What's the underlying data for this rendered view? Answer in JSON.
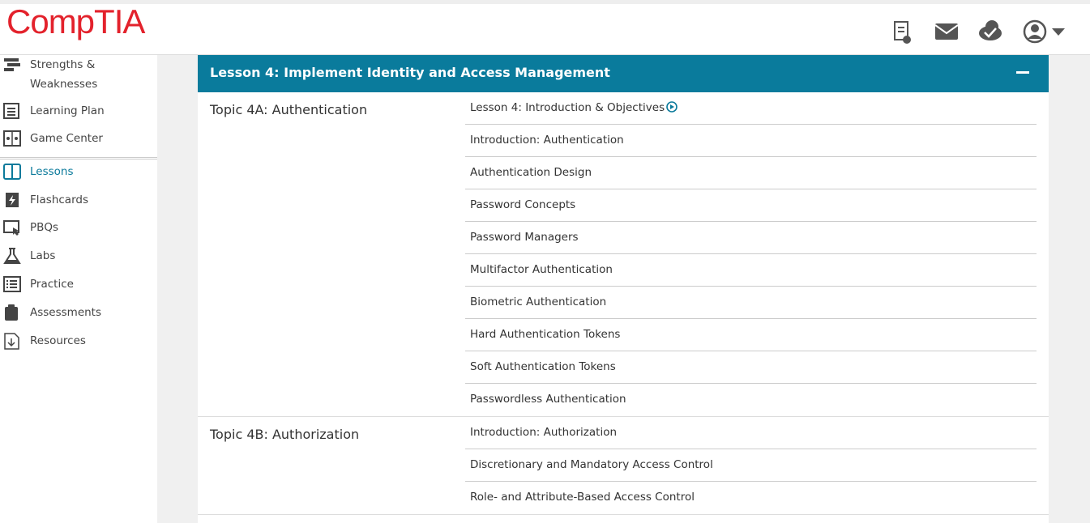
{
  "header": {
    "logo": "CompTIA"
  },
  "sidebar": {
    "items": [
      {
        "label": "Strengths & Weaknesses",
        "icon": "bars"
      },
      {
        "label": "Learning Plan",
        "icon": "doc"
      },
      {
        "label": "Game Center",
        "icon": "game"
      },
      {
        "label": "Lessons",
        "icon": "book",
        "active": true
      },
      {
        "label": "Flashcards",
        "icon": "flash"
      },
      {
        "label": "PBQs",
        "icon": "pbq"
      },
      {
        "label": "Labs",
        "icon": "flask"
      },
      {
        "label": "Practice",
        "icon": "list"
      },
      {
        "label": "Assessments",
        "icon": "clip"
      },
      {
        "label": "Resources",
        "icon": "down"
      }
    ]
  },
  "lesson": {
    "title": "Lesson 4: Implement Identity and Access Management",
    "topics": [
      {
        "title": "Topic 4A: Authentication",
        "items": [
          "Lesson 4: Introduction & Objectives",
          "Introduction: Authentication",
          "Authentication Design",
          "Password Concepts",
          "Password Managers",
          "Multifactor Authentication",
          "Biometric Authentication",
          "Hard Authentication Tokens",
          "Soft Authentication Tokens",
          "Passwordless Authentication"
        ]
      },
      {
        "title": "Topic 4B: Authorization",
        "items": [
          "Introduction: Authorization",
          "Discretionary and Mandatory Access Control",
          "Role- and Attribute-Based Access Control"
        ]
      }
    ]
  }
}
